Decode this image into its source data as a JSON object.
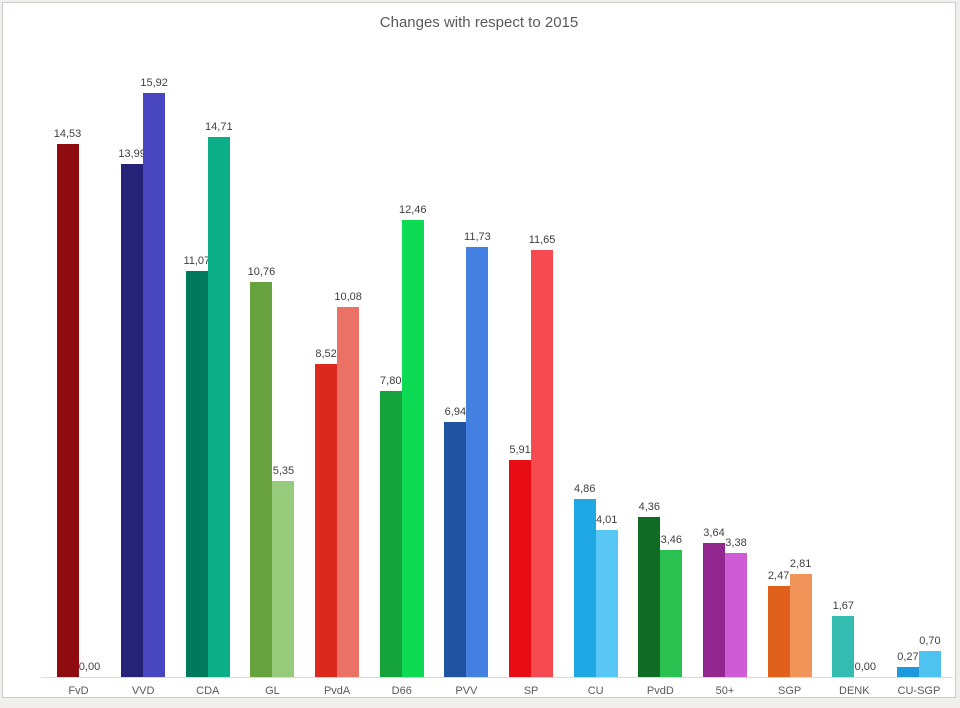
{
  "page": {
    "background_color": "#F1EFED",
    "frame_border_color": "#CDCBC9",
    "canvas_color": "#FFFFFF"
  },
  "chart_data": {
    "type": "bar",
    "title": "Changes with respect to 2015",
    "title_color": "#595959",
    "categories": [
      "FvD",
      "VVD",
      "CDA",
      "GL",
      "PvdA",
      "D66",
      "PVV",
      "SP",
      "CU",
      "PvdD",
      "50+",
      "SGP",
      "DENK",
      "CU-SGP"
    ],
    "series": [
      {
        "name": "series-1",
        "values": [
          14.53,
          13.99,
          11.07,
          10.76,
          8.52,
          7.8,
          6.94,
          5.91,
          4.86,
          4.36,
          3.64,
          2.47,
          1.67,
          0.27
        ],
        "labels": [
          "14,53",
          "13,99",
          "11,07",
          "10,76",
          "8,52",
          "7,80",
          "6,94",
          "5,91",
          "4,86",
          "4,36",
          "3,64",
          "2,47",
          "1,67",
          "0,27"
        ],
        "colors": [
          "#8E0B10",
          "#262277",
          "#00795C",
          "#68A23E",
          "#DC291E",
          "#15A43C",
          "#2153A3",
          "#E80D15",
          "#1FA8E4",
          "#106C24",
          "#93278F",
          "#E0611C",
          "#35BCB1",
          "#1E98DC"
        ]
      },
      {
        "name": "series-2",
        "values": [
          0,
          15.92,
          14.71,
          5.35,
          10.08,
          12.46,
          11.73,
          11.65,
          4.01,
          3.46,
          3.38,
          2.81,
          0,
          0.7
        ],
        "labels": [
          "0,00",
          "15,92",
          "14,71",
          "5,35",
          "10,08",
          "12,46",
          "11,73",
          "11,65",
          "4,01",
          "3,46",
          "3,38",
          "2,81",
          "0,00",
          "0,70"
        ],
        "colors": [
          "#8E0B10",
          "#4746C0",
          "#0CAE87",
          "#96CB7C",
          "#EC7165",
          "#0CDB53",
          "#4380E2",
          "#F44A50",
          "#58C7F5",
          "#2BC151",
          "#D05BD6",
          "#F09459",
          "#35BCB1",
          "#4EC3F0"
        ]
      }
    ],
    "ylim": [
      0,
      16.5
    ],
    "grid": false,
    "legend": "none",
    "value_label_color": "#404040",
    "axis_line_color": "#D9D9D9",
    "axis_label_color": "#595959",
    "decimal_separator": ","
  }
}
